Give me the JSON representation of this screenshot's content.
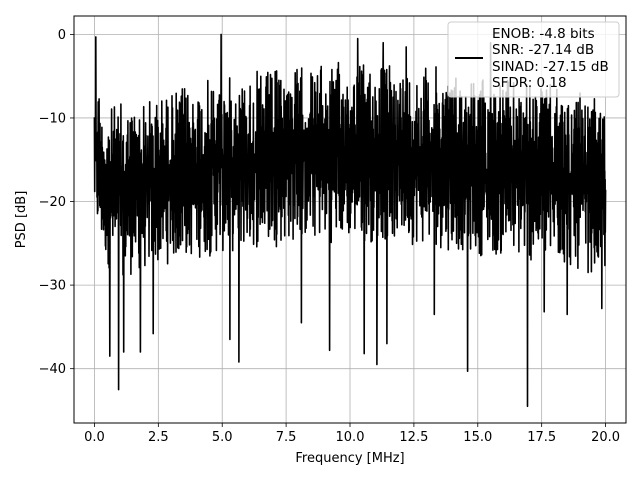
{
  "chart_data": {
    "type": "line",
    "title": "",
    "xlabel": "Frequency [MHz]",
    "ylabel": "PSD [dB]",
    "xlim": [
      -0.8,
      20.8
    ],
    "ylim": [
      -46.5,
      2.2
    ],
    "xticks": [
      0.0,
      2.5,
      5.0,
      7.5,
      10.0,
      12.5,
      15.0,
      17.5,
      20.0
    ],
    "xtick_labels": [
      "0.0",
      "2.5",
      "5.0",
      "7.5",
      "10.0",
      "12.5",
      "15.0",
      "17.5",
      "20.0"
    ],
    "yticks": [
      0,
      -10,
      -20,
      -30,
      -40
    ],
    "ytick_labels": [
      "0",
      "−10",
      "−20",
      "−30",
      "−40"
    ],
    "grid": true,
    "legend_position": "top-right",
    "legend_lines": [
      "ENOB: -4.8 bits",
      "SNR: -27.14 dB",
      "SINAD: -27.15 dB",
      "SFDR: 0.18"
    ],
    "series": [
      {
        "color": "#000000",
        "envelope": {
          "x": [
            0.0,
            0.3,
            0.5,
            1.0,
            1.5,
            2.0,
            2.5,
            3.0,
            4.0,
            5.0,
            6.0,
            7.0,
            8.0,
            9.0,
            10.0,
            11.0,
            12.0,
            13.0,
            14.0,
            15.0,
            16.0,
            17.0,
            18.0,
            19.0,
            20.0
          ],
          "upper": [
            -0.5,
            -9.0,
            -8.5,
            -8.0,
            -8.0,
            -7.5,
            -7.0,
            -6.5,
            -5.5,
            -5.0,
            -4.5,
            -4.0,
            -3.5,
            -3.5,
            -3.0,
            -3.0,
            -3.5,
            -3.5,
            -4.0,
            -4.5,
            -5.0,
            -5.5,
            -6.0,
            -7.0,
            -8.0
          ],
          "lower": [
            -24.0,
            -26.0,
            -28.0,
            -29.0,
            -29.0,
            -28.5,
            -28.0,
            -27.5,
            -27.0,
            -26.5,
            -26.0,
            -25.5,
            -25.0,
            -25.0,
            -25.0,
            -25.0,
            -25.0,
            -25.5,
            -26.0,
            -26.5,
            -27.0,
            -27.5,
            -28.0,
            -28.5,
            -29.0
          ]
        },
        "notable_peaks": [
          {
            "x": 0.05,
            "y": -0.3
          },
          {
            "x": 4.95,
            "y": 0.0
          },
          {
            "x": 10.3,
            "y": -0.5
          },
          {
            "x": 11.3,
            "y": -1.0
          },
          {
            "x": 12.2,
            "y": -1.5
          },
          {
            "x": 15.5,
            "y": -1.0
          }
        ],
        "notable_dips": [
          {
            "x": 0.95,
            "y": -42.5
          },
          {
            "x": 0.6,
            "y": -38.5
          },
          {
            "x": 1.15,
            "y": -38.0
          },
          {
            "x": 1.8,
            "y": -38.0
          },
          {
            "x": 2.3,
            "y": -35.8
          },
          {
            "x": 5.3,
            "y": -36.5
          },
          {
            "x": 5.65,
            "y": -39.2
          },
          {
            "x": 8.1,
            "y": -34.5
          },
          {
            "x": 9.2,
            "y": -37.8
          },
          {
            "x": 10.55,
            "y": -38.2
          },
          {
            "x": 11.05,
            "y": -39.5
          },
          {
            "x": 11.45,
            "y": -37.0
          },
          {
            "x": 13.3,
            "y": -33.5
          },
          {
            "x": 14.6,
            "y": -40.3
          },
          {
            "x": 16.95,
            "y": -44.5
          },
          {
            "x": 17.6,
            "y": -33.2
          },
          {
            "x": 18.5,
            "y": -33.5
          },
          {
            "x": 19.85,
            "y": -32.8
          }
        ]
      }
    ]
  }
}
